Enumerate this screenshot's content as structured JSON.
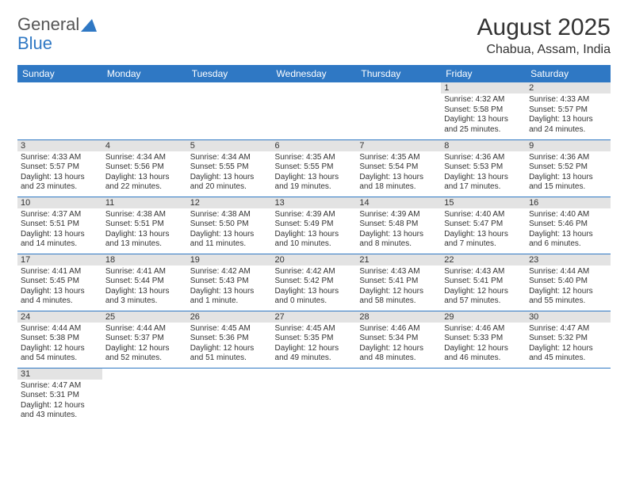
{
  "logo": {
    "text1": "General",
    "text2": "Blue",
    "sail_color": "#2f78c4"
  },
  "title": {
    "month": "August 2025",
    "location": "Chabua, Assam, India"
  },
  "colors": {
    "header_bg": "#2f78c4",
    "header_fg": "#ffffff",
    "daynum_bg": "#e3e3e3",
    "row_border": "#2f78c4",
    "text": "#333333"
  },
  "day_headers": [
    "Sunday",
    "Monday",
    "Tuesday",
    "Wednesday",
    "Thursday",
    "Friday",
    "Saturday"
  ],
  "weeks": [
    [
      null,
      null,
      null,
      null,
      null,
      {
        "n": "1",
        "sr": "Sunrise: 4:32 AM",
        "ss": "Sunset: 5:58 PM",
        "d1": "Daylight: 13 hours",
        "d2": "and 25 minutes."
      },
      {
        "n": "2",
        "sr": "Sunrise: 4:33 AM",
        "ss": "Sunset: 5:57 PM",
        "d1": "Daylight: 13 hours",
        "d2": "and 24 minutes."
      }
    ],
    [
      {
        "n": "3",
        "sr": "Sunrise: 4:33 AM",
        "ss": "Sunset: 5:57 PM",
        "d1": "Daylight: 13 hours",
        "d2": "and 23 minutes."
      },
      {
        "n": "4",
        "sr": "Sunrise: 4:34 AM",
        "ss": "Sunset: 5:56 PM",
        "d1": "Daylight: 13 hours",
        "d2": "and 22 minutes."
      },
      {
        "n": "5",
        "sr": "Sunrise: 4:34 AM",
        "ss": "Sunset: 5:55 PM",
        "d1": "Daylight: 13 hours",
        "d2": "and 20 minutes."
      },
      {
        "n": "6",
        "sr": "Sunrise: 4:35 AM",
        "ss": "Sunset: 5:55 PM",
        "d1": "Daylight: 13 hours",
        "d2": "and 19 minutes."
      },
      {
        "n": "7",
        "sr": "Sunrise: 4:35 AM",
        "ss": "Sunset: 5:54 PM",
        "d1": "Daylight: 13 hours",
        "d2": "and 18 minutes."
      },
      {
        "n": "8",
        "sr": "Sunrise: 4:36 AM",
        "ss": "Sunset: 5:53 PM",
        "d1": "Daylight: 13 hours",
        "d2": "and 17 minutes."
      },
      {
        "n": "9",
        "sr": "Sunrise: 4:36 AM",
        "ss": "Sunset: 5:52 PM",
        "d1": "Daylight: 13 hours",
        "d2": "and 15 minutes."
      }
    ],
    [
      {
        "n": "10",
        "sr": "Sunrise: 4:37 AM",
        "ss": "Sunset: 5:51 PM",
        "d1": "Daylight: 13 hours",
        "d2": "and 14 minutes."
      },
      {
        "n": "11",
        "sr": "Sunrise: 4:38 AM",
        "ss": "Sunset: 5:51 PM",
        "d1": "Daylight: 13 hours",
        "d2": "and 13 minutes."
      },
      {
        "n": "12",
        "sr": "Sunrise: 4:38 AM",
        "ss": "Sunset: 5:50 PM",
        "d1": "Daylight: 13 hours",
        "d2": "and 11 minutes."
      },
      {
        "n": "13",
        "sr": "Sunrise: 4:39 AM",
        "ss": "Sunset: 5:49 PM",
        "d1": "Daylight: 13 hours",
        "d2": "and 10 minutes."
      },
      {
        "n": "14",
        "sr": "Sunrise: 4:39 AM",
        "ss": "Sunset: 5:48 PM",
        "d1": "Daylight: 13 hours",
        "d2": "and 8 minutes."
      },
      {
        "n": "15",
        "sr": "Sunrise: 4:40 AM",
        "ss": "Sunset: 5:47 PM",
        "d1": "Daylight: 13 hours",
        "d2": "and 7 minutes."
      },
      {
        "n": "16",
        "sr": "Sunrise: 4:40 AM",
        "ss": "Sunset: 5:46 PM",
        "d1": "Daylight: 13 hours",
        "d2": "and 6 minutes."
      }
    ],
    [
      {
        "n": "17",
        "sr": "Sunrise: 4:41 AM",
        "ss": "Sunset: 5:45 PM",
        "d1": "Daylight: 13 hours",
        "d2": "and 4 minutes."
      },
      {
        "n": "18",
        "sr": "Sunrise: 4:41 AM",
        "ss": "Sunset: 5:44 PM",
        "d1": "Daylight: 13 hours",
        "d2": "and 3 minutes."
      },
      {
        "n": "19",
        "sr": "Sunrise: 4:42 AM",
        "ss": "Sunset: 5:43 PM",
        "d1": "Daylight: 13 hours",
        "d2": "and 1 minute."
      },
      {
        "n": "20",
        "sr": "Sunrise: 4:42 AM",
        "ss": "Sunset: 5:42 PM",
        "d1": "Daylight: 13 hours",
        "d2": "and 0 minutes."
      },
      {
        "n": "21",
        "sr": "Sunrise: 4:43 AM",
        "ss": "Sunset: 5:41 PM",
        "d1": "Daylight: 12 hours",
        "d2": "and 58 minutes."
      },
      {
        "n": "22",
        "sr": "Sunrise: 4:43 AM",
        "ss": "Sunset: 5:41 PM",
        "d1": "Daylight: 12 hours",
        "d2": "and 57 minutes."
      },
      {
        "n": "23",
        "sr": "Sunrise: 4:44 AM",
        "ss": "Sunset: 5:40 PM",
        "d1": "Daylight: 12 hours",
        "d2": "and 55 minutes."
      }
    ],
    [
      {
        "n": "24",
        "sr": "Sunrise: 4:44 AM",
        "ss": "Sunset: 5:38 PM",
        "d1": "Daylight: 12 hours",
        "d2": "and 54 minutes."
      },
      {
        "n": "25",
        "sr": "Sunrise: 4:44 AM",
        "ss": "Sunset: 5:37 PM",
        "d1": "Daylight: 12 hours",
        "d2": "and 52 minutes."
      },
      {
        "n": "26",
        "sr": "Sunrise: 4:45 AM",
        "ss": "Sunset: 5:36 PM",
        "d1": "Daylight: 12 hours",
        "d2": "and 51 minutes."
      },
      {
        "n": "27",
        "sr": "Sunrise: 4:45 AM",
        "ss": "Sunset: 5:35 PM",
        "d1": "Daylight: 12 hours",
        "d2": "and 49 minutes."
      },
      {
        "n": "28",
        "sr": "Sunrise: 4:46 AM",
        "ss": "Sunset: 5:34 PM",
        "d1": "Daylight: 12 hours",
        "d2": "and 48 minutes."
      },
      {
        "n": "29",
        "sr": "Sunrise: 4:46 AM",
        "ss": "Sunset: 5:33 PM",
        "d1": "Daylight: 12 hours",
        "d2": "and 46 minutes."
      },
      {
        "n": "30",
        "sr": "Sunrise: 4:47 AM",
        "ss": "Sunset: 5:32 PM",
        "d1": "Daylight: 12 hours",
        "d2": "and 45 minutes."
      }
    ],
    [
      {
        "n": "31",
        "sr": "Sunrise: 4:47 AM",
        "ss": "Sunset: 5:31 PM",
        "d1": "Daylight: 12 hours",
        "d2": "and 43 minutes."
      },
      null,
      null,
      null,
      null,
      null,
      null
    ]
  ]
}
